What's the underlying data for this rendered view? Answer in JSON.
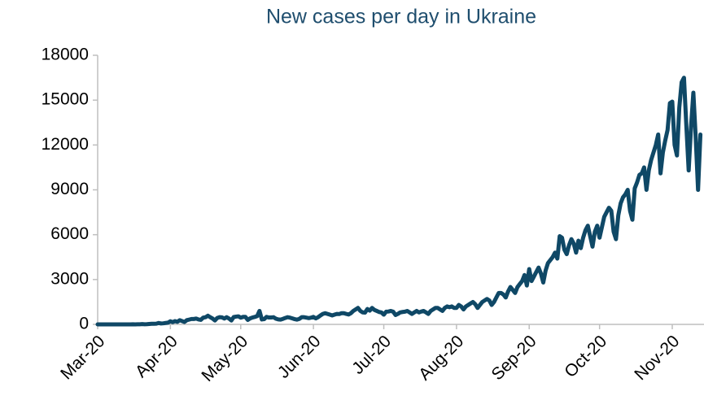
{
  "chart_data": {
    "type": "line",
    "title": "New cases per day in Ukraine",
    "color": "#0f4866",
    "categories": [
      "Mar-20",
      null,
      null,
      null,
      null,
      null,
      null,
      null,
      null,
      null,
      null,
      null,
      null,
      null,
      null,
      null,
      null,
      null,
      null,
      null,
      null,
      null,
      null,
      null,
      null,
      null,
      null,
      null,
      null,
      null,
      null,
      "Apr-20",
      null,
      null,
      null,
      null,
      null,
      null,
      null,
      null,
      null,
      null,
      null,
      null,
      null,
      null,
      null,
      null,
      null,
      null,
      null,
      null,
      null,
      null,
      null,
      null,
      null,
      null,
      null,
      null,
      null,
      "May-20",
      null,
      null,
      null,
      null,
      null,
      null,
      null,
      null,
      null,
      null,
      null,
      null,
      null,
      null,
      null,
      null,
      null,
      null,
      null,
      null,
      null,
      null,
      null,
      null,
      null,
      null,
      null,
      null,
      null,
      null,
      "Jun-20",
      null,
      null,
      null,
      null,
      null,
      null,
      null,
      null,
      null,
      null,
      null,
      null,
      null,
      null,
      null,
      null,
      null,
      null,
      null,
      null,
      null,
      null,
      null,
      null,
      null,
      null,
      null,
      null,
      null,
      "Jul-20",
      null,
      null,
      null,
      null,
      null,
      null,
      null,
      null,
      null,
      null,
      null,
      null,
      null,
      null,
      null,
      null,
      null,
      null,
      null,
      null,
      null,
      null,
      null,
      null,
      null,
      null,
      null,
      null,
      null,
      null,
      "Aug-20",
      null,
      null,
      null,
      null,
      null,
      null,
      null,
      null,
      null,
      null,
      null,
      null,
      null,
      null,
      null,
      null,
      null,
      null,
      null,
      null,
      null,
      null,
      null,
      null,
      null,
      null,
      null,
      null,
      null,
      null,
      "Sep-20",
      null,
      null,
      null,
      null,
      null,
      null,
      null,
      null,
      null,
      null,
      null,
      null,
      null,
      null,
      null,
      null,
      null,
      null,
      null,
      null,
      null,
      null,
      null,
      null,
      null,
      null,
      null,
      null,
      null,
      "Oct-20",
      null,
      null,
      null,
      null,
      null,
      null,
      null,
      null,
      null,
      null,
      null,
      null,
      null,
      null,
      null,
      null,
      null,
      null,
      null,
      null,
      null,
      null,
      null,
      null,
      null,
      null,
      null,
      null,
      null,
      null,
      "Nov-20",
      null,
      null,
      null,
      null,
      null,
      null,
      null,
      null,
      null,
      null,
      null,
      null
    ],
    "values": [
      0,
      0,
      1,
      0,
      0,
      0,
      1,
      0,
      2,
      0,
      1,
      0,
      2,
      0,
      3,
      7,
      2,
      9,
      10,
      21,
      10,
      12,
      29,
      43,
      43,
      48,
      92,
      62,
      71,
      94,
      115,
      207,
      150,
      220,
      170,
      280,
      220,
      160,
      280,
      320,
      360,
      360,
      390,
      330,
      300,
      450,
      480,
      580,
      480,
      390,
      260,
      430,
      480,
      470,
      390,
      480,
      390,
      260,
      490,
      520,
      540,
      450,
      500,
      500,
      300,
      400,
      460,
      500,
      550,
      900,
      330,
      350,
      500,
      460,
      460,
      480,
      380,
      330,
      320,
      370,
      430,
      480,
      450,
      400,
      350,
      320,
      370,
      480,
      480,
      450,
      420,
      450,
      500,
      400,
      480,
      600,
      700,
      750,
      700,
      650,
      600,
      650,
      700,
      690,
      750,
      750,
      700,
      660,
      750,
      900,
      1000,
      1100,
      900,
      800,
      790,
      1030,
      920,
      1100,
      970,
      900,
      830,
      800,
      650,
      850,
      860,
      900,
      850,
      630,
      700,
      800,
      830,
      850,
      900,
      800,
      700,
      800,
      900,
      800,
      860,
      900,
      800,
      700,
      900,
      1000,
      1100,
      1100,
      1000,
      900,
      1100,
      1200,
      1150,
      1200,
      1100,
      1100,
      1300,
      1200,
      1000,
      1200,
      1300,
      1400,
      1500,
      1350,
      1100,
      1300,
      1500,
      1600,
      1700,
      1600,
      1300,
      1500,
      1800,
      2100,
      2100,
      2000,
      1800,
      2200,
      2500,
      2300,
      2100,
      2500,
      2700,
      2900,
      3300,
      2600,
      3700,
      2900,
      3200,
      3500,
      3800,
      3400,
      2800,
      3600,
      4100,
      4300,
      4500,
      4800,
      4400,
      5900,
      5800,
      5000,
      4700,
      5300,
      5700,
      5400,
      4800,
      5600,
      5100,
      5800,
      6300,
      6600,
      5900,
      5200,
      6200,
      6600,
      5800,
      6500,
      7200,
      7500,
      7800,
      7600,
      6200,
      5700,
      7300,
      8100,
      8500,
      8700,
      9000,
      7600,
      7000,
      9100,
      9500,
      10000,
      10100,
      10500,
      9000,
      10300,
      11000,
      11500,
      12000,
      12700,
      10100,
      11500,
      12300,
      13000,
      14800,
      14900,
      12000,
      11300,
      14500,
      16200,
      16500,
      13300,
      10300,
      13200,
      15500,
      12500,
      9000,
      12700
    ],
    "ylim": [
      0,
      18000
    ],
    "yticks": [
      0,
      3000,
      6000,
      9000,
      12000,
      15000,
      18000
    ],
    "grid": false
  }
}
